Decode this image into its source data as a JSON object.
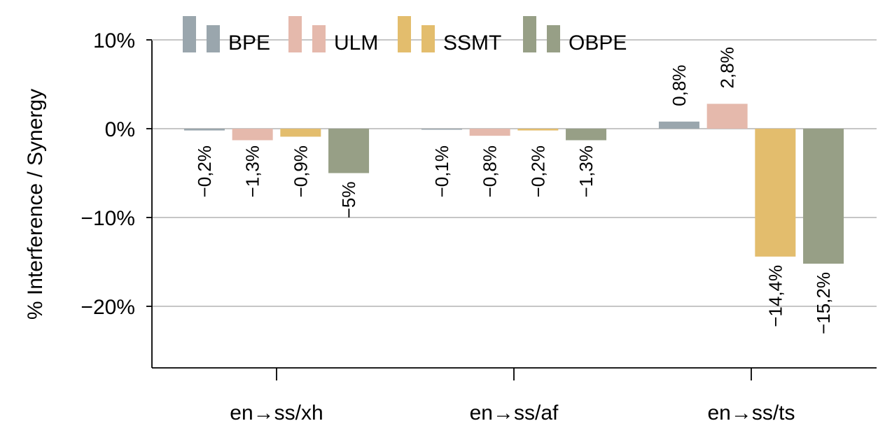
{
  "chart_data": {
    "type": "bar",
    "ylabel": "% Interference / Synergy",
    "xlabel": "",
    "title": "",
    "ylim": [
      -27,
      12
    ],
    "yticks": [
      10,
      0,
      -10,
      -20
    ],
    "ytick_labels": [
      "10%",
      "0%",
      "−10%",
      "−20%"
    ],
    "categories": [
      "en→ss/xh",
      "en→ss/af",
      "en→ss/ts"
    ],
    "grid": "horizontal",
    "legend_position": "top-left",
    "series": [
      {
        "name": "BPE",
        "color": "#9aa6ad",
        "values": [
          -0.2,
          -0.1,
          0.8
        ],
        "labels": [
          "−0,2%",
          "−0,1%",
          "0,8%"
        ]
      },
      {
        "name": "ULM",
        "color": "#e5b9ac",
        "values": [
          -1.3,
          -0.8,
          2.8
        ],
        "labels": [
          "−1,3%",
          "−0,8%",
          "2,8%"
        ]
      },
      {
        "name": "SSMT",
        "color": "#e3bd6d",
        "values": [
          -0.9,
          -0.2,
          -14.4
        ],
        "labels": [
          "−0,9%",
          "−0,2%",
          "−14,4%"
        ]
      },
      {
        "name": "OBPE",
        "color": "#979f86",
        "values": [
          -5,
          -1.3,
          -15.2
        ],
        "labels": [
          "−5%",
          "−1,3%",
          "−15,2%"
        ]
      }
    ]
  }
}
